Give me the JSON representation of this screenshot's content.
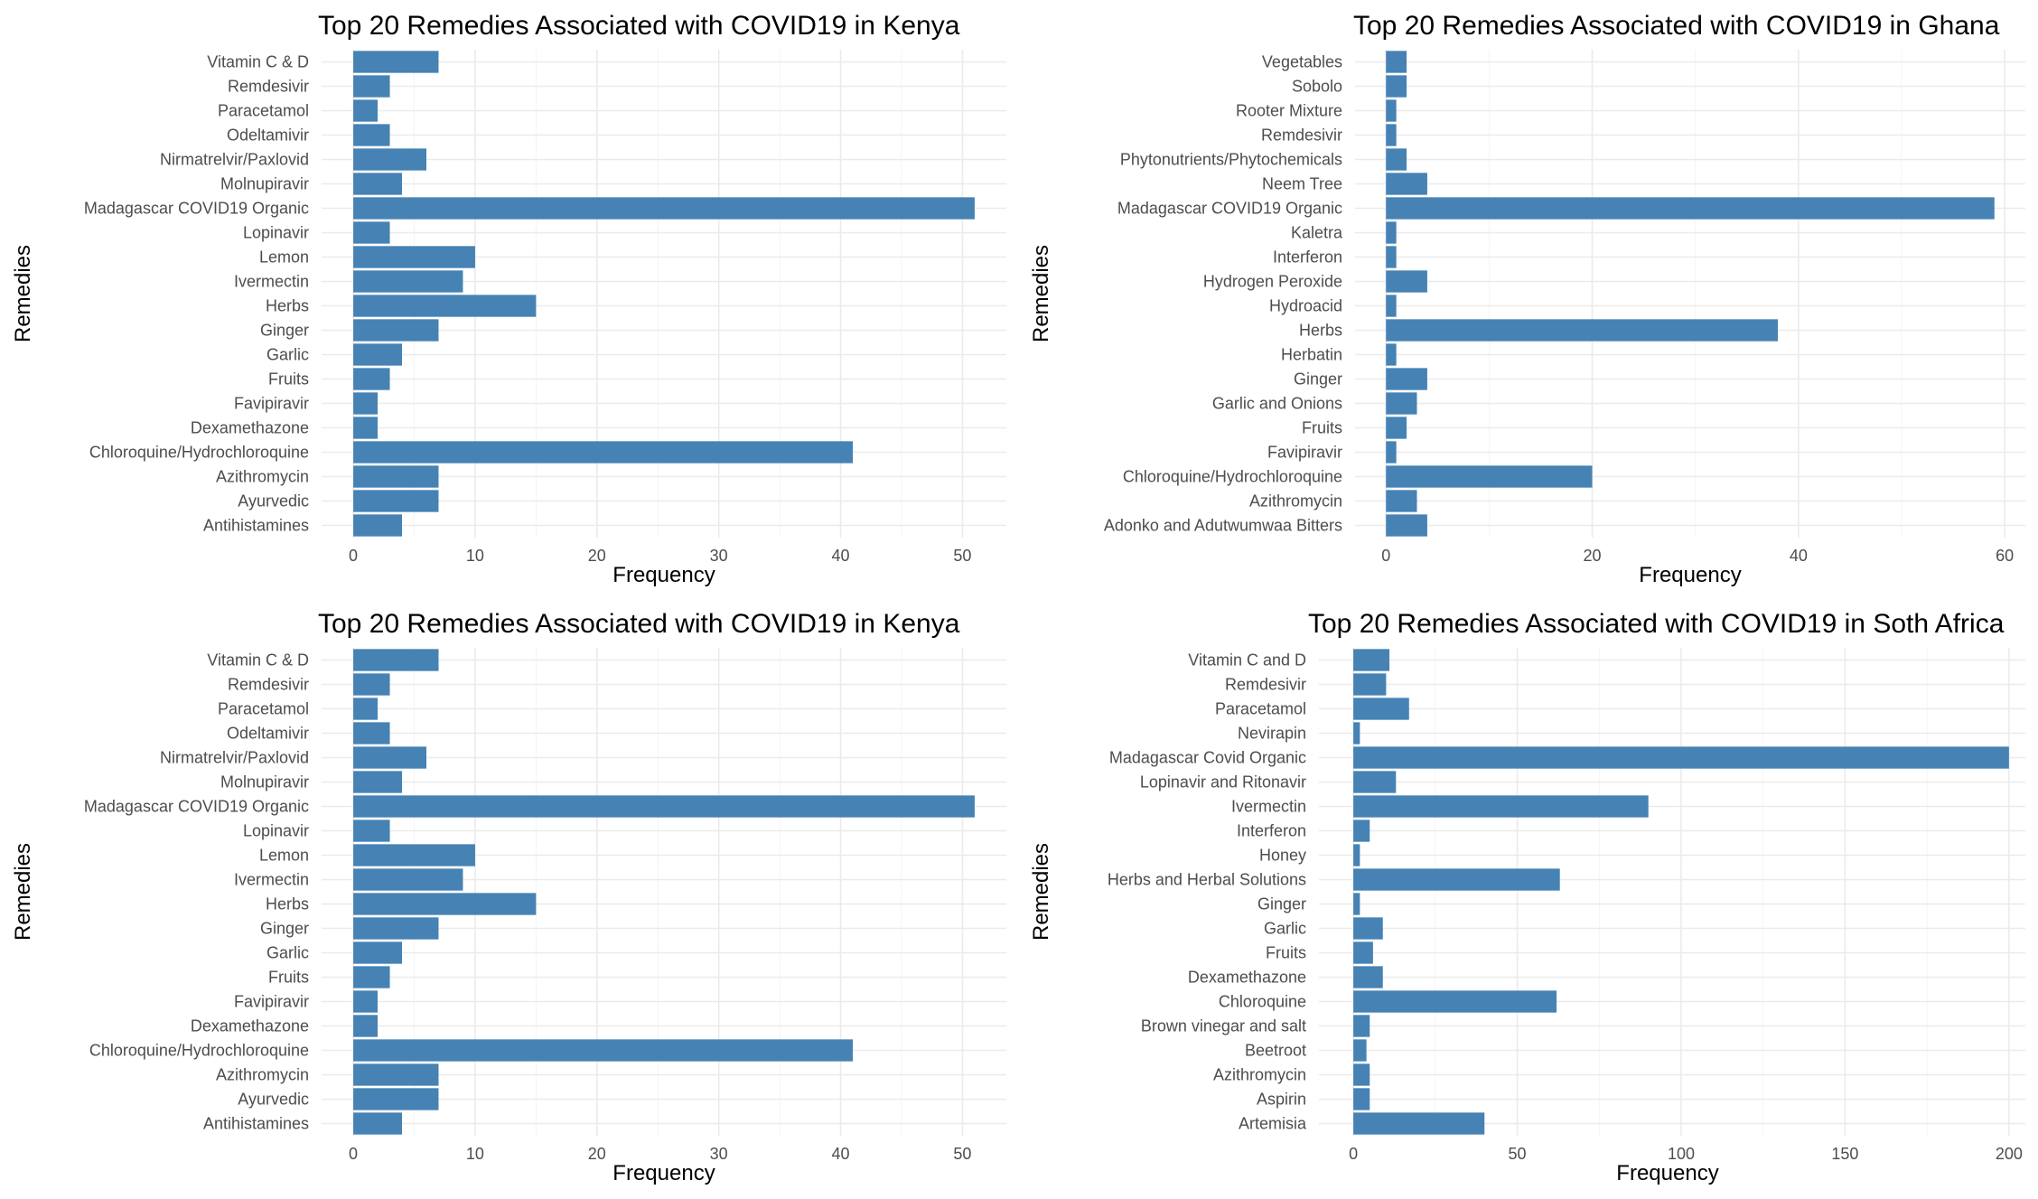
{
  "colors": {
    "bar": "#4682b4",
    "grid_major": "#ebebeb",
    "grid_minor": "#f2f2f2",
    "tick_text": "#4d4d4d",
    "text": "#000000"
  },
  "chart_data": [
    {
      "type": "bar",
      "orientation": "horizontal",
      "title": "Top 20 Remedies Associated with COVID19 in Kenya",
      "xlabel": "Frequency",
      "ylabel": "Remedies",
      "xlim": [
        -2.6,
        53.6
      ],
      "xticks": [
        0,
        10,
        20,
        30,
        40,
        50
      ],
      "grid": true,
      "categories": [
        "Vitamin C & D",
        "Remdesivir",
        "Paracetamol",
        "Odeltamivir",
        "Nirmatrelvir/Paxlovid",
        "Molnupiravir",
        "Madagascar COVID19 Organic",
        "Lopinavir",
        "Lemon",
        "Ivermectin",
        "Herbs",
        "Ginger",
        "Garlic",
        "Fruits",
        "Favipiravir",
        "Dexamethazone",
        "Chloroquine/Hydrochloroquine",
        "Azithromycin",
        "Ayurvedic",
        "Antihistamines"
      ],
      "values": [
        7,
        3,
        2,
        3,
        6,
        4,
        51,
        3,
        10,
        9,
        15,
        7,
        4,
        3,
        2,
        2,
        41,
        7,
        7,
        4
      ]
    },
    {
      "type": "bar",
      "orientation": "horizontal",
      "title": "Top 20 Remedies Associated with COVID19 in Ghana",
      "xlabel": "Frequency",
      "ylabel": "Remedies",
      "xlim": [
        -3.0,
        62.0
      ],
      "xticks": [
        0,
        20,
        40,
        60
      ],
      "grid": true,
      "categories": [
        "Vegetables",
        "Sobolo",
        "Rooter Mixture",
        "Remdesivir",
        "Phytonutrients/Phytochemicals",
        "Neem Tree",
        "Madagascar COVID19 Organic",
        "Kaletra",
        "Interferon",
        "Hydrogen Peroxide",
        "Hydroacid",
        "Herbs",
        "Herbatin",
        "Ginger",
        "Garlic and Onions",
        "Fruits",
        "Favipiravir",
        "Chloroquine/Hydrochloroquine",
        "Azithromycin",
        "Adonko and Adutwumwaa Bitters"
      ],
      "values": [
        2,
        2,
        1,
        1,
        2,
        4,
        59,
        1,
        1,
        4,
        1,
        38,
        1,
        4,
        3,
        2,
        1,
        20,
        3,
        4
      ]
    },
    {
      "type": "bar",
      "orientation": "horizontal",
      "title": "Top 20 Remedies Associated with COVID19 in Kenya",
      "xlabel": "Frequency",
      "ylabel": "Remedies",
      "xlim": [
        -2.6,
        53.6
      ],
      "xticks": [
        0,
        10,
        20,
        30,
        40,
        50
      ],
      "grid": true,
      "categories": [
        "Vitamin C & D",
        "Remdesivir",
        "Paracetamol",
        "Odeltamivir",
        "Nirmatrelvir/Paxlovid",
        "Molnupiravir",
        "Madagascar COVID19 Organic",
        "Lopinavir",
        "Lemon",
        "Ivermectin",
        "Herbs",
        "Ginger",
        "Garlic",
        "Fruits",
        "Favipiravir",
        "Dexamethazone",
        "Chloroquine/Hydrochloroquine",
        "Azithromycin",
        "Ayurvedic",
        "Antihistamines"
      ],
      "values": [
        7,
        3,
        2,
        3,
        6,
        4,
        51,
        3,
        10,
        9,
        15,
        7,
        4,
        3,
        2,
        2,
        41,
        7,
        7,
        4
      ]
    },
    {
      "type": "bar",
      "orientation": "horizontal",
      "title": "Top 20 Remedies Associated with COVID19 in Soth Africa",
      "xlabel": "Frequency",
      "ylabel": "Remedies",
      "xlim": [
        -10.5,
        205.0
      ],
      "xticks": [
        0,
        50,
        100,
        150,
        200
      ],
      "grid": true,
      "categories": [
        "Vitamin C and D",
        "Remdesivir",
        "Paracetamol",
        "Nevirapin",
        "Madagascar Covid Organic",
        "Lopinavir and Ritonavir",
        "Ivermectin",
        "Interferon",
        "Honey",
        "Herbs and Herbal Solutions",
        "Ginger",
        "Garlic",
        "Fruits",
        "Dexamethazone",
        "Chloroquine",
        "Brown vinegar and salt",
        "Beetroot",
        "Azithromycin",
        "Aspirin",
        "Artemisia"
      ],
      "values": [
        11,
        10,
        17,
        2,
        200,
        13,
        90,
        5,
        2,
        63,
        2,
        9,
        6,
        9,
        62,
        5,
        4,
        5,
        5,
        40
      ]
    }
  ]
}
